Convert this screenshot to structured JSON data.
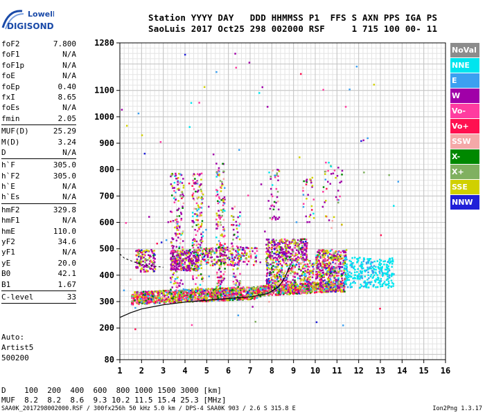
{
  "logo": {
    "line1": "Lowell",
    "line2": "DIGISONDE"
  },
  "header": {
    "line1": "Station YYYY DAY   DDD HHMMSS P1  FFS S AXN PPS IGA PS",
    "line2": "SaoLuis 2017 Oct25 298 002000 RSF     1 715 100 00- 11"
  },
  "params": [
    {
      "name": "foF2",
      "value": "7.800"
    },
    {
      "name": "foF1",
      "value": "N/A"
    },
    {
      "name": "foF1p",
      "value": "N/A"
    },
    {
      "name": "foE",
      "value": "N/A"
    },
    {
      "name": "foEp",
      "value": "0.40"
    },
    {
      "name": "fxI",
      "value": "8.65"
    },
    {
      "name": "foEs",
      "value": "N/A"
    },
    {
      "name": "fmin",
      "value": "2.05",
      "sep": true
    },
    {
      "name": "MUF(D)",
      "value": "25.29"
    },
    {
      "name": "M(D)",
      "value": "3.24"
    },
    {
      "name": "D",
      "value": "N/A",
      "sep": true
    },
    {
      "name": "h`F",
      "value": "305.0"
    },
    {
      "name": "h`F2",
      "value": "305.0"
    },
    {
      "name": "h`E",
      "value": "N/A"
    },
    {
      "name": "h`Es",
      "value": "N/A",
      "sep": true
    },
    {
      "name": "hmF2",
      "value": "329.8"
    },
    {
      "name": "hmF1",
      "value": "N/A"
    },
    {
      "name": "hmE",
      "value": "110.0"
    },
    {
      "name": "yF2",
      "value": "34.6"
    },
    {
      "name": "yF1",
      "value": "N/A"
    },
    {
      "name": "yE",
      "value": "20.0"
    },
    {
      "name": "B0",
      "value": "42.1"
    },
    {
      "name": "B1",
      "value": "1.67",
      "sep": true
    },
    {
      "name": "C-level",
      "value": "33",
      "sep": true
    }
  ],
  "auto": [
    "Auto:",
    "Artist5",
    "500200"
  ],
  "legend": [
    {
      "label": "NoVal",
      "color": "#8c8c8c"
    },
    {
      "label": "NNE",
      "color": "#00e5ee"
    },
    {
      "label": "E",
      "color": "#3ca0f0"
    },
    {
      "label": "W",
      "color": "#a000a8"
    },
    {
      "label": "Vo-",
      "color": "#ff3ca0"
    },
    {
      "label": "Vo+",
      "color": "#ff1050"
    },
    {
      "label": "SSW",
      "color": "#f5a8a8"
    },
    {
      "label": "X-",
      "color": "#008800"
    },
    {
      "label": "X+",
      "color": "#80b060"
    },
    {
      "label": "SSE",
      "color": "#d0d000"
    },
    {
      "label": "NNW",
      "color": "#2020d8"
    }
  ],
  "dmuf": {
    "line1": "D    100  200  400  600  800 1000 1500 3000 [km]",
    "line2": "MUF  8.2  8.2  8.6  9.3 10.2 11.5 15.4 25.3 [MHz]"
  },
  "footer": "SAA0K_2017298002000.RSF / 300fx256h 50 kHz 5.0 km / DPS-4 SAA0K 903 / 2.6 S 315.8 E",
  "version": "Ion2Png 1.3.17",
  "chart_data": {
    "type": "scatter",
    "xlim": [
      1,
      16
    ],
    "ylim": [
      80,
      1280
    ],
    "x_ticks": [
      "1",
      "2",
      "3",
      "4",
      "5",
      "6",
      "7",
      "8",
      "9",
      "10",
      "11",
      "12",
      "13",
      "14",
      "15",
      "16"
    ],
    "y_ticks": [
      "80",
      "200",
      "300",
      "400",
      "500",
      "600",
      "700",
      "800",
      "900",
      "1000",
      "1100",
      "1280"
    ],
    "grid": true,
    "legend_placement": "right",
    "profile_curve": [
      [
        1,
        240
      ],
      [
        1.5,
        258
      ],
      [
        2,
        272
      ],
      [
        3,
        288
      ],
      [
        4,
        298
      ],
      [
        5,
        305
      ],
      [
        6,
        312
      ],
      [
        7,
        318
      ],
      [
        7.8,
        330
      ],
      [
        8.3,
        355
      ],
      [
        8.6,
        390
      ],
      [
        8.8,
        430
      ]
    ],
    "dashed_curve": [
      [
        1,
        480
      ],
      [
        1.2,
        465
      ],
      [
        1.5,
        455
      ],
      [
        2,
        440
      ],
      [
        2.5,
        435
      ],
      [
        3,
        430
      ]
    ]
  }
}
